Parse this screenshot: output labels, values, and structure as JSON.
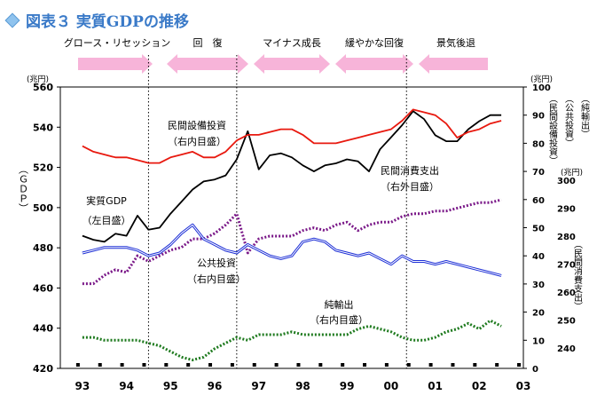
{
  "title": "図表３ 実質GDPの推移",
  "colors": {
    "gdp": "#000000",
    "capex": "#e8190f",
    "consumption": "#7b1a89",
    "public": "#1d2fd6",
    "net_exports": "#1e7a1e",
    "phase_arrow": "#f7b4d9",
    "title": "#3a7ac8"
  },
  "phases": [
    "グロース・リセッション",
    "回　復",
    "マイナス成長",
    "緩やかな回復",
    "景気後退"
  ],
  "chart_data": {
    "type": "line",
    "x_labels": [
      "93",
      "94",
      "95",
      "96",
      "97",
      "98",
      "99",
      "00",
      "01",
      "02",
      "03"
    ],
    "x_range": [
      1992.5,
      2003.0
    ],
    "vertical_markers": [
      1994.5,
      1996.5,
      2000.35
    ],
    "axes": {
      "left": {
        "label": "（ＧＤＰ）",
        "unit": "(兆円)",
        "range": [
          420,
          560
        ],
        "ticks": [
          "420",
          "440",
          "460",
          "480",
          "500",
          "520",
          "540",
          "560"
        ]
      },
      "right_inner": {
        "unit": "(兆円)",
        "range": [
          0,
          100
        ],
        "ticks": [
          "0",
          "10",
          "20",
          "30",
          "40",
          "50",
          "60",
          "70",
          "80",
          "90",
          "100"
        ],
        "labels": [
          "（民間設備投資）",
          "（公共投資）",
          "（純輸出）"
        ]
      },
      "right_outer": {
        "unit": "(兆円)",
        "range": [
          240,
          300
        ],
        "ticks": [
          "240",
          "250",
          "260",
          "270",
          "280",
          "290",
          "300"
        ],
        "label": "（民間消費支出）"
      }
    },
    "series": [
      {
        "name": "実質GDP",
        "sublabel": "（左目盛）",
        "axis": "left",
        "x": [
          1993.0,
          1993.25,
          1993.5,
          1993.75,
          1994.0,
          1994.25,
          1994.5,
          1994.75,
          1995.0,
          1995.25,
          1995.5,
          1995.75,
          1996.0,
          1996.25,
          1996.5,
          1996.75,
          1997.0,
          1997.25,
          1997.5,
          1997.75,
          1998.0,
          1998.25,
          1998.5,
          1998.75,
          1999.0,
          1999.25,
          1999.5,
          1999.75,
          2000.0,
          2000.25,
          2000.5,
          2000.75,
          2001.0,
          2001.25,
          2001.5,
          2001.75,
          2002.0,
          2002.25,
          2002.5
        ],
        "values": [
          486,
          484,
          483,
          487,
          486,
          496,
          489,
          490,
          497,
          503,
          509,
          513,
          514,
          516,
          524,
          538,
          519,
          526,
          527,
          525,
          521,
          518,
          521,
          522,
          524,
          523,
          518,
          529,
          535,
          541,
          548,
          544,
          536,
          533,
          533,
          539,
          543,
          546,
          546
        ]
      },
      {
        "name": "民間設備投資",
        "sublabel": "（右内目盛）",
        "axis": "right_inner",
        "x": [
          1993.0,
          1993.25,
          1993.5,
          1993.75,
          1994.0,
          1994.25,
          1994.5,
          1994.75,
          1995.0,
          1995.25,
          1995.5,
          1995.75,
          1996.0,
          1996.25,
          1996.5,
          1996.75,
          1997.0,
          1997.25,
          1997.5,
          1997.75,
          1998.0,
          1998.25,
          1998.5,
          1998.75,
          1999.0,
          1999.25,
          1999.5,
          1999.75,
          2000.0,
          2000.25,
          2000.5,
          2000.75,
          2001.0,
          2001.25,
          2001.5,
          2001.75,
          2002.0,
          2002.25,
          2002.5
        ],
        "values": [
          79,
          77,
          76,
          75,
          75,
          74,
          73,
          73,
          75,
          76,
          77,
          75,
          75,
          77,
          81,
          83,
          83,
          84,
          85,
          85,
          83,
          80,
          80,
          80,
          81,
          82,
          83,
          84,
          85,
          88,
          92,
          91,
          90,
          87,
          82,
          84,
          85,
          87,
          88
        ]
      },
      {
        "name": "民間消費支出",
        "sublabel": "（右外目盛）",
        "axis": "right_outer",
        "x": [
          1993.0,
          1993.25,
          1993.5,
          1993.75,
          1994.0,
          1994.25,
          1994.5,
          1994.75,
          1995.0,
          1995.25,
          1995.5,
          1995.75,
          1996.0,
          1996.25,
          1996.5,
          1996.75,
          1997.0,
          1997.25,
          1997.5,
          1997.75,
          1998.0,
          1998.25,
          1998.5,
          1998.75,
          1999.0,
          1999.25,
          1999.5,
          1999.75,
          2000.0,
          2000.25,
          2000.5,
          2000.75,
          2001.0,
          2001.25,
          2001.5,
          2001.75,
          2002.0,
          2002.25,
          2002.5
        ],
        "values": [
          263,
          263,
          266,
          268,
          267,
          273,
          271,
          273,
          275,
          276,
          279,
          279,
          281,
          284,
          288,
          274,
          279,
          280,
          280,
          280,
          282,
          283,
          282,
          284,
          285,
          282,
          284,
          285,
          285,
          287,
          288,
          288,
          289,
          289,
          290,
          291,
          292,
          292,
          293
        ]
      },
      {
        "name": "公共投資",
        "sublabel": "（右内目盛）",
        "axis": "right_inner",
        "x": [
          1993.0,
          1993.25,
          1993.5,
          1993.75,
          1994.0,
          1994.25,
          1994.5,
          1994.75,
          1995.0,
          1995.25,
          1995.5,
          1995.75,
          1996.0,
          1996.25,
          1996.5,
          1996.75,
          1997.0,
          1997.25,
          1997.5,
          1997.75,
          1998.0,
          1998.25,
          1998.5,
          1998.75,
          1999.0,
          1999.25,
          1999.5,
          1999.75,
          2000.0,
          2000.25,
          2000.5,
          2000.75,
          2001.0,
          2001.25,
          2001.5,
          2001.75,
          2002.0,
          2002.25,
          2002.5
        ],
        "values": [
          41,
          42,
          43,
          43,
          43,
          42,
          40,
          41,
          44,
          48,
          51,
          46,
          44,
          42,
          41,
          44,
          42,
          40,
          39,
          40,
          45,
          46,
          45,
          42,
          41,
          40,
          41,
          39,
          37,
          40,
          38,
          38,
          37,
          38,
          37,
          36,
          35,
          34,
          33
        ]
      },
      {
        "name": "純輸出",
        "sublabel": "（右内目盛）",
        "axis": "right_inner",
        "x": [
          1993.0,
          1993.25,
          1993.5,
          1993.75,
          1994.0,
          1994.25,
          1994.5,
          1994.75,
          1995.0,
          1995.25,
          1995.5,
          1995.75,
          1996.0,
          1996.25,
          1996.5,
          1996.75,
          1997.0,
          1997.25,
          1997.5,
          1997.75,
          1998.0,
          1998.25,
          1998.5,
          1998.75,
          1999.0,
          1999.25,
          1999.5,
          1999.75,
          2000.0,
          2000.25,
          2000.5,
          2000.75,
          2001.0,
          2001.25,
          2001.5,
          2001.75,
          2002.0,
          2002.25,
          2002.5
        ],
        "values": [
          11,
          11,
          10,
          10,
          10,
          10,
          9,
          8,
          6,
          4,
          3,
          4,
          7,
          9,
          11,
          10,
          12,
          12,
          12,
          13,
          12,
          12,
          12,
          12,
          12,
          14,
          15,
          14,
          13,
          11,
          10,
          10,
          11,
          13,
          14,
          16,
          14,
          17,
          15
        ]
      }
    ]
  }
}
